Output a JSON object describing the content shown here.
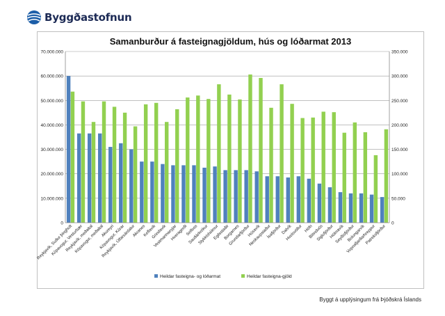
{
  "logo": {
    "text": "Byggðastofnun",
    "brand_color": "#1c2a55",
    "icon": "globe-logo-icon"
  },
  "chart_data": {
    "type": "bar",
    "title": "Samanburður á fasteignagjöldum,  hús og lóðarmat 2013",
    "categories": [
      "Reykjavík, Suður þingholt",
      "Kópavogur, Vesturbær",
      "Reykjavík, meðaltal",
      "Kópavogur, meðaltal",
      "Akureyri",
      "Kópavogur, Kórar",
      "Reykjavík, Úlfarsárdalur",
      "Akranes",
      "Keflavík",
      "Grindavík",
      "Vestmannaeyjar",
      "Hveragerði",
      "Selfoss",
      "Sauðárkrókur",
      "Stykkishólmur",
      "Egilsstaðir",
      "Borgarnes",
      "Grundarfjörður",
      "Húsavík",
      "Neskaupstaður",
      "Ísafjörður",
      "Dalvík",
      "Hvolsvöllur",
      "Höfn",
      "Blönduós",
      "Siglufjörður",
      "Hólmavík",
      "Seyðisfjörður",
      "Bolungarvík",
      "Vopnafjarðarhreppur",
      "Patreksfjörður"
    ],
    "series": [
      {
        "name": "Heildar fasteigna- og lóðarmat",
        "axis": "left",
        "color": "#4f81bd",
        "values": [
          60000000,
          36500000,
          36500000,
          36500000,
          31000000,
          32500000,
          30000000,
          25000000,
          25000000,
          24000000,
          23500000,
          23500000,
          23500000,
          22500000,
          23000000,
          21500000,
          21500000,
          21500000,
          21000000,
          19000000,
          19000000,
          18500000,
          19000000,
          18000000,
          16000000,
          14500000,
          12500000,
          12000000,
          12000000,
          11500000,
          10500000
        ]
      },
      {
        "name": "Heildar fasteigna-gjöld",
        "axis": "right",
        "color": "#92d050",
        "values": [
          268000,
          248000,
          206000,
          248000,
          237000,
          225000,
          197000,
          242000,
          245000,
          206000,
          232000,
          256000,
          260000,
          253000,
          283000,
          262000,
          252000,
          303000,
          296000,
          235000,
          283000,
          243000,
          214000,
          215000,
          227000,
          226000,
          184000,
          205000,
          185000,
          138000,
          191000
        ]
      }
    ],
    "y_left": {
      "min": 0,
      "max": 70000000,
      "step": 10000000,
      "tick_labels": [
        "0",
        "10.000.000",
        "20.000.000",
        "30.000.000",
        "40.000.000",
        "50.000.000",
        "60.000.000",
        "70.000.000"
      ]
    },
    "y_right": {
      "min": 0,
      "max": 350000,
      "step": 50000,
      "tick_labels": [
        "0",
        "50.000",
        "100.000",
        "150.000",
        "200.000",
        "250.000",
        "300.000",
        "350.000"
      ]
    },
    "grid": true,
    "legend_position": "bottom"
  },
  "footer": {
    "source": "Byggt á upplýsingum frá Þjóðskrá Íslands"
  }
}
